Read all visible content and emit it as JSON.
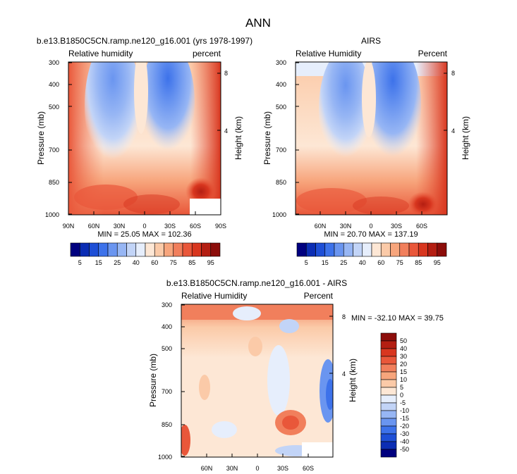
{
  "figure": {
    "title": "ANN"
  },
  "colors": {
    "abs_levels": [
      "#00007f",
      "#0b2db4",
      "#1e4fd6",
      "#3d72ea",
      "#6a95f0",
      "#97b6f4",
      "#c2d4f7",
      "#e6eefc",
      "#fde7d5",
      "#fbcaa8",
      "#f7a57c",
      "#f17f5c",
      "#e9573a",
      "#d8361f",
      "#b41e12",
      "#8c0d0a"
    ],
    "diff_levels": [
      "#00007f",
      "#0b2db4",
      "#1e4fd6",
      "#3d72ea",
      "#6a95f0",
      "#97b6f4",
      "#c2d4f7",
      "#e6eefc",
      "#fde7d5",
      "#fbcaa8",
      "#f7a57c",
      "#f17f5c",
      "#e9573a",
      "#d8361f",
      "#b41e12",
      "#8c0d0a"
    ]
  },
  "chart_data": [
    {
      "type": "heatmap",
      "title": "b.e13.B1850C5CN.ramp.ne120_g16.001 (yrs 1978-1997)",
      "left_label": "Relative humidity",
      "right_label": "percent",
      "ylabel": "Pressure (mb)",
      "y2label": "Height (km)",
      "xticks": [
        "90N",
        "60N",
        "30N",
        "0",
        "30S",
        "60S",
        "90S"
      ],
      "yticks": [
        "300",
        "400",
        "500",
        "700",
        "850",
        "1000"
      ],
      "y2ticks": [
        "8",
        "4"
      ],
      "min_max": "MIN = 25.05  MAX = 102.36"
    },
    {
      "type": "heatmap",
      "title": "AIRS",
      "left_label": "Relative Humidity",
      "right_label": "Percent",
      "ylabel": "Pressure (mb)",
      "y2label": "Height (km)",
      "xticks": [
        "60N",
        "30N",
        "0",
        "30S",
        "60S"
      ],
      "yticks": [
        "300",
        "400",
        "500",
        "700",
        "850",
        "1000"
      ],
      "y2ticks": [
        "8",
        "4"
      ],
      "min_max": "MIN = 20.70  MAX = 137.19"
    },
    {
      "type": "heatmap",
      "title": "b.e13.B1850C5CN.ramp.ne120_g16.001 - AIRS",
      "left_label": "Relative Humidity",
      "right_label": "Percent",
      "ylabel": "Pressure (mb)",
      "y2label": "Height (km)",
      "xticks": [
        "60N",
        "30N",
        "0",
        "30S",
        "60S"
      ],
      "yticks": [
        "300",
        "400",
        "500",
        "700",
        "850",
        "1000"
      ],
      "y2ticks": [
        "8",
        "4"
      ],
      "min_max": "MIN = -32.10  MAX = 39.75"
    }
  ],
  "colorbars": {
    "abs_labels": [
      "5",
      "15",
      "25",
      "40",
      "60",
      "75",
      "85",
      "95"
    ],
    "diff_labels": [
      "50",
      "40",
      "30",
      "20",
      "15",
      "10",
      "5",
      "0",
      "-5",
      "-10",
      "-15",
      "-20",
      "-30",
      "-40",
      "-50"
    ]
  }
}
